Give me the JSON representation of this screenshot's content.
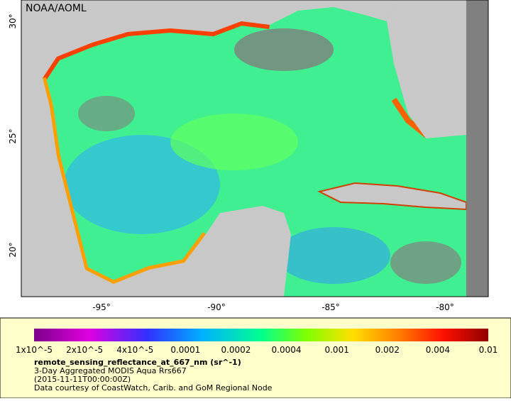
{
  "map": {
    "credit": "NOAA/AOML",
    "lat_labels": [
      "30°",
      "25°",
      "20°"
    ],
    "lon_labels": [
      "-95°",
      "-90°",
      "-85°",
      "-80°"
    ]
  },
  "colorbar": {
    "labels": [
      "1x10^-5",
      "2x10^-5",
      "4x10^-5",
      "0.0001",
      "0.0002",
      "0.0004",
      "0.001",
      "0.002",
      "0.004",
      "0.01"
    ]
  },
  "caption": {
    "variable": "remote_sensing_reflectance_at_667_nm (sr^-1)",
    "lines": [
      "3-Day Aggregated MODIS Aqua Rrs667",
      "(2015-11-11T00:00:00Z)",
      "Data courtesy of CoastWatch, Carib. and GoM Regional Node"
    ]
  }
}
